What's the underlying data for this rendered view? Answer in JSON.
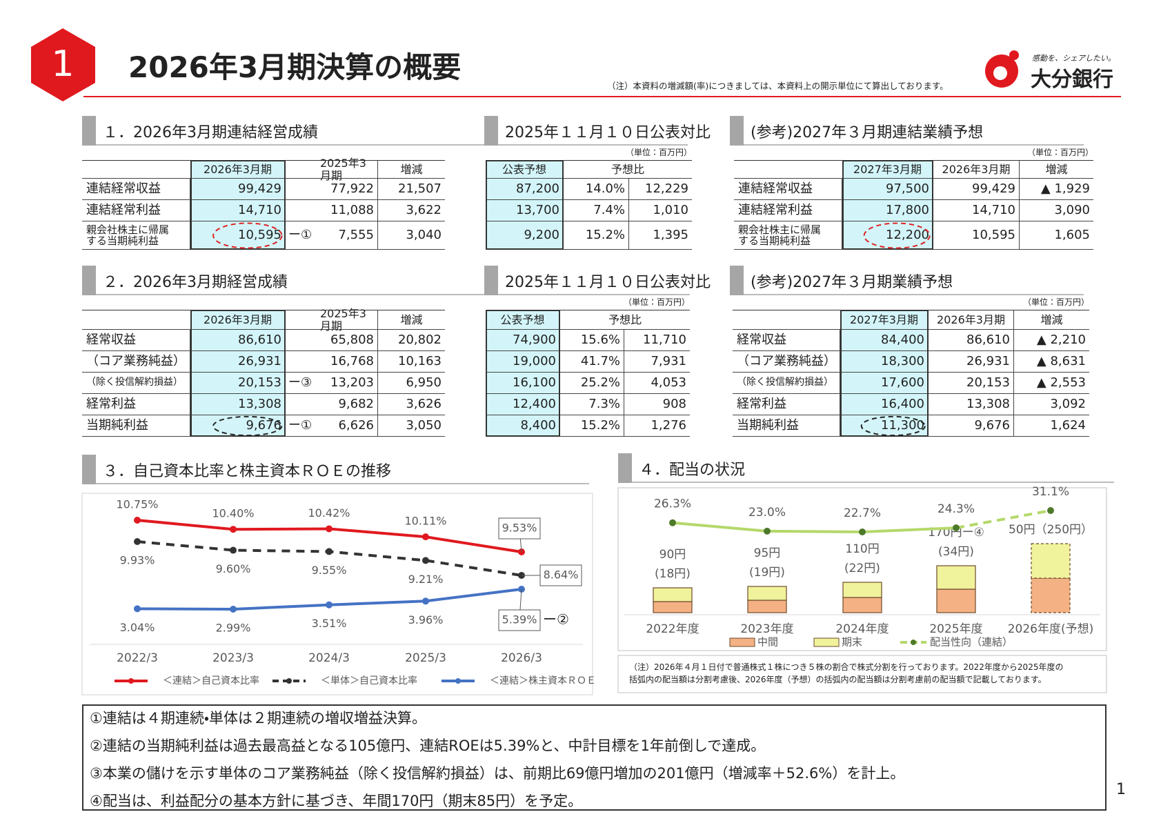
{
  "header": {
    "number": "1",
    "title": "2026年3月期決算の概要",
    "note": "（注）本資料の増減額(率)につきましては、本資料上の開示単位にて算出しております。",
    "logo_tagline": "感動を、シェアしたい。",
    "logo_name": "大分銀行"
  },
  "tables": [
    {
      "title": "１．2026年3月期連結経営成績",
      "columns": [
        null,
        "2026年3月期",
        null,
        "2025年3月期",
        "増減"
      ],
      "rows": [
        [
          "連結経常収益",
          "99,429",
          null,
          "77,922",
          "21,507"
        ],
        [
          "連結経常利益",
          "14,710",
          null,
          "11,088",
          "3,622"
        ],
        [
          "親会社株主に帰属\nする当期純利益",
          "10,595",
          "ー①",
          "7,555",
          "3,040"
        ]
      ]
    },
    {
      "title": "2025年１１月１０日公表対比",
      "unit": "（単位：百万円）",
      "columns": [
        "公表予想",
        "予想比"
      ],
      "rows": [
        [
          "87,200",
          "14.0%",
          "12,229"
        ],
        [
          "13,700",
          "7.4%",
          "1,010"
        ],
        [
          "9,200",
          "15.2%",
          "1,395"
        ]
      ]
    },
    {
      "title": "(参考)2027年３月期連結業績予想",
      "unit": "（単位：百万円）",
      "columns": [
        null,
        "2027年3月期",
        "2026年3月期",
        "増減"
      ],
      "rows": [
        [
          "連結経常収益",
          "97,500",
          "99,429",
          "▲ 1,929"
        ],
        [
          "連結経常利益",
          "17,800",
          "14,710",
          "3,090"
        ],
        [
          "親会社株主に帰属\nする当期純利益",
          "12,200",
          "10,595",
          "1,605"
        ]
      ]
    },
    {
      "title": "２．2026年3月期経営成績",
      "columns": [
        null,
        "2026年3月期",
        null,
        "2025年3月期",
        "増減"
      ],
      "rows": [
        [
          "経常収益",
          "86,610",
          null,
          "65,808",
          "20,802"
        ],
        [
          "（コア業務純益）",
          "26,931",
          null,
          "16,768",
          "10,163"
        ],
        [
          "（除く投信解約損益）",
          "20,153",
          "ー③",
          "13,203",
          "6,950"
        ],
        [
          "経常利益",
          "13,308",
          null,
          "9,682",
          "3,626"
        ],
        [
          "当期純利益",
          "9,676",
          "ー①",
          "6,626",
          "3,050"
        ]
      ]
    },
    {
      "title": "2025年１１月１０日公表対比",
      "unit": "（単位：百万円）",
      "columns": [
        "公表予想",
        "予想比"
      ],
      "rows": [
        [
          "74,900",
          "15.6%",
          "11,710"
        ],
        [
          "19,000",
          "41.7%",
          "7,931"
        ],
        [
          "16,100",
          "25.2%",
          "4,053"
        ],
        [
          "12,400",
          "7.3%",
          "908"
        ],
        [
          "8,400",
          "15.2%",
          "1,276"
        ]
      ]
    },
    {
      "title": "(参考)2027年３月期業績予想",
      "unit": "（単位：百万円）",
      "columns": [
        null,
        "2027年3月期",
        "2026年3月期",
        "増減"
      ],
      "rows": [
        [
          "経常収益",
          "84,400",
          "86,610",
          "▲ 2,210"
        ],
        [
          "（コア業務純益）",
          "18,300",
          "26,931",
          "▲ 8,631"
        ],
        [
          "（除く投信解約損益）",
          "17,600",
          "20,153",
          "▲ 2,553"
        ],
        [
          "経常利益",
          "16,400",
          "13,308",
          "3,092"
        ],
        [
          "当期純利益",
          "11,300",
          "9,676",
          "1,624"
        ]
      ]
    }
  ],
  "chart_data": [
    {
      "type": "line",
      "title": "３．自己資本比率と株主資本ＲＯＥの推移",
      "categories": [
        "2022/3",
        "2023/3",
        "2024/3",
        "2025/3",
        "2026/3"
      ],
      "series": [
        {
          "name": "＜連結＞自己資本比率",
          "color": "#e0191f",
          "values": [
            10.75,
            10.4,
            10.42,
            10.11,
            9.53
          ],
          "value_labels": [
            "10.75%",
            "10.40%",
            "10.42%",
            "10.11%",
            "9.53%"
          ]
        },
        {
          "name": "＜単体＞自己資本比率",
          "color": "#333333",
          "values": [
            9.93,
            9.6,
            9.55,
            9.21,
            8.64
          ],
          "value_labels": [
            "9.93%",
            "9.60%",
            "9.55%",
            "9.21%",
            "8.64%"
          ]
        },
        {
          "name": "＜連結＞株主資本ＲＯＥ",
          "color": "#4472c4",
          "values": [
            3.04,
            2.99,
            3.51,
            3.96,
            5.39
          ],
          "value_labels": [
            "3.04%",
            "2.99%",
            "3.51%",
            "3.96%",
            "5.39%"
          ]
        }
      ],
      "annotation": "ー②"
    },
    {
      "type": "bar",
      "stacked": true,
      "title": "４．配当の状況",
      "categories": [
        "2022年度",
        "2023年度",
        "2024年度",
        "2025年度",
        "2026年度(予想)"
      ],
      "series": [
        {
          "name": "中間",
          "color": "#f4b183",
          "values": [
            40,
            45,
            55,
            85,
            125
          ]
        },
        {
          "name": "期末",
          "color": "#f1f29c",
          "values": [
            50,
            50,
            55,
            85,
            125
          ]
        },
        {
          "name": "配当性向（連結）",
          "type": "line",
          "color": "#b5d86a",
          "values": [
            26.3,
            23.0,
            22.7,
            24.3,
            31.1
          ],
          "value_labels": [
            "26.3%",
            "23.0%",
            "22.7%",
            "24.3%",
            "31.1%"
          ]
        }
      ],
      "bar_labels": [
        "90円",
        "95円",
        "110円",
        "170円ー④",
        "50円（250円）"
      ],
      "bar_sub_labels": [
        "(18円)",
        "(19円)",
        "(22円)",
        "(34円)",
        null
      ]
    }
  ],
  "dividend_note": "（注）2026年４月１日付で普通株式１株につき５株の割合で株式分割を行っております。2022年度から2025年度の\n括弧内の配当額は分割考慮後、2026年度（予想）の括弧内の配当額は分割考慮前の配当額で記載しております。",
  "summary": [
    "①連結は４期連続・単体は２期連続の増収増益決算。",
    "②連結の当期純利益は過去最高益となる105億円、連結ROEは5.39%と、中計目標を1年前倒しで達成。",
    "③本業の儲けを示す単体のコア業務純益（除く投信解約損益）は、前期比69億円増加の201億円（増減率＋52.6%）を計上。",
    "④配当は、利益配分の基本方針に基づき、年間170円（期末85円）を予定。"
  ],
  "page_number": "1"
}
